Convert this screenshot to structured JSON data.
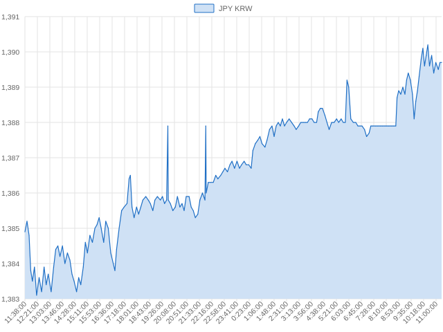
{
  "chart_data": {
    "type": "area",
    "series": [
      {
        "name": "JPY KRW",
        "color": "#1f6fc5",
        "fill": "#cfe1f5",
        "points": [
          [
            0,
            1384.9
          ],
          [
            0.5,
            1385.2
          ],
          [
            1,
            1384.8
          ],
          [
            1.4,
            1383.8
          ],
          [
            1.8,
            1383.5
          ],
          [
            2.3,
            1383.9
          ],
          [
            2.8,
            1383.1
          ],
          [
            3.4,
            1383.6
          ],
          [
            4,
            1383.2
          ],
          [
            4.6,
            1383.9
          ],
          [
            5.1,
            1383.4
          ],
          [
            5.6,
            1383.7
          ],
          [
            6.3,
            1383.2
          ],
          [
            6.9,
            1383.9
          ],
          [
            7.4,
            1384.4
          ],
          [
            7.9,
            1384.5
          ],
          [
            8.4,
            1384.2
          ],
          [
            9,
            1384.5
          ],
          [
            9.6,
            1384.0
          ],
          [
            10.2,
            1384.3
          ],
          [
            10.8,
            1384.1
          ],
          [
            11.3,
            1383.7
          ],
          [
            11.8,
            1383.5
          ],
          [
            12.4,
            1383.2
          ],
          [
            12.9,
            1383.6
          ],
          [
            13.4,
            1383.4
          ],
          [
            14,
            1383.9
          ],
          [
            14.5,
            1384.6
          ],
          [
            15,
            1384.3
          ],
          [
            15.6,
            1384.8
          ],
          [
            16.2,
            1384.6
          ],
          [
            16.8,
            1385.0
          ],
          [
            17.3,
            1385.1
          ],
          [
            17.8,
            1385.3
          ],
          [
            18.3,
            1385.0
          ],
          [
            18.9,
            1384.6
          ],
          [
            19.4,
            1385.2
          ],
          [
            20,
            1385.0
          ],
          [
            20.6,
            1384.3
          ],
          [
            21.2,
            1384.0
          ],
          [
            21.6,
            1383.8
          ],
          [
            22,
            1384.4
          ],
          [
            22.6,
            1385.0
          ],
          [
            23.2,
            1385.5
          ],
          [
            23.8,
            1385.6
          ],
          [
            24.5,
            1385.7
          ],
          [
            25,
            1386.4
          ],
          [
            25.3,
            1386.5
          ],
          [
            25.7,
            1385.6
          ],
          [
            26.2,
            1385.3
          ],
          [
            26.8,
            1385.6
          ],
          [
            27.3,
            1385.4
          ],
          [
            27.8,
            1385.6
          ],
          [
            28.3,
            1385.8
          ],
          [
            29,
            1385.9
          ],
          [
            29.6,
            1385.8
          ],
          [
            30.1,
            1385.7
          ],
          [
            30.7,
            1385.5
          ],
          [
            31.2,
            1385.8
          ],
          [
            31.8,
            1385.9
          ],
          [
            32.5,
            1385.8
          ],
          [
            33,
            1385.9
          ],
          [
            33.5,
            1385.7
          ],
          [
            34,
            1385.8
          ],
          [
            34.3,
            1387.9
          ],
          [
            34.4,
            1385.8
          ],
          [
            34.9,
            1385.7
          ],
          [
            35.5,
            1385.5
          ],
          [
            36.1,
            1385.6
          ],
          [
            36.6,
            1385.9
          ],
          [
            37.2,
            1385.6
          ],
          [
            37.7,
            1385.7
          ],
          [
            38.2,
            1385.5
          ],
          [
            38.7,
            1385.9
          ],
          [
            39.4,
            1385.9
          ],
          [
            39.9,
            1385.6
          ],
          [
            40.4,
            1385.5
          ],
          [
            40.9,
            1385.3
          ],
          [
            41.5,
            1385.4
          ],
          [
            42,
            1385.8
          ],
          [
            42.6,
            1386.0
          ],
          [
            43.2,
            1385.8
          ],
          [
            43.4,
            1387.9
          ],
          [
            43.5,
            1386.0
          ],
          [
            44,
            1386.3
          ],
          [
            44.6,
            1386.3
          ],
          [
            45.2,
            1386.3
          ],
          [
            45.8,
            1386.5
          ],
          [
            46.3,
            1386.4
          ],
          [
            47,
            1386.5
          ],
          [
            47.5,
            1386.6
          ],
          [
            48,
            1386.7
          ],
          [
            48.6,
            1386.6
          ],
          [
            49.2,
            1386.8
          ],
          [
            49.7,
            1386.9
          ],
          [
            50.3,
            1386.7
          ],
          [
            50.9,
            1386.9
          ],
          [
            51.5,
            1386.7
          ],
          [
            52,
            1386.8
          ],
          [
            52.6,
            1386.9
          ],
          [
            53.1,
            1386.8
          ],
          [
            53.7,
            1386.8
          ],
          [
            54.3,
            1386.7
          ],
          [
            54.7,
            1387.2
          ],
          [
            55.3,
            1387.4
          ],
          [
            55.9,
            1387.5
          ],
          [
            56.4,
            1387.6
          ],
          [
            56.9,
            1387.4
          ],
          [
            57.6,
            1387.3
          ],
          [
            58.1,
            1387.5
          ],
          [
            58.7,
            1387.8
          ],
          [
            59.3,
            1387.9
          ],
          [
            59.8,
            1387.6
          ],
          [
            60.3,
            1387.9
          ],
          [
            60.8,
            1388.0
          ],
          [
            61.3,
            1387.9
          ],
          [
            61.8,
            1388.1
          ],
          [
            62.3,
            1387.9
          ],
          [
            62.8,
            1388.0
          ],
          [
            63.4,
            1388.1
          ],
          [
            64,
            1388.0
          ],
          [
            64.6,
            1387.9
          ],
          [
            65.1,
            1387.8
          ],
          [
            65.7,
            1387.9
          ],
          [
            66.2,
            1388.0
          ],
          [
            66.8,
            1388.0
          ],
          [
            67.3,
            1388.0
          ],
          [
            67.8,
            1388.0
          ],
          [
            68.3,
            1388.1
          ],
          [
            68.9,
            1388.1
          ],
          [
            69.4,
            1388.0
          ],
          [
            70,
            1388.0
          ],
          [
            70.4,
            1388.3
          ],
          [
            70.9,
            1388.4
          ],
          [
            71.4,
            1388.4
          ],
          [
            72,
            1388.2
          ],
          [
            72.5,
            1388.0
          ],
          [
            73,
            1387.8
          ],
          [
            73.6,
            1388.0
          ],
          [
            74.2,
            1388.0
          ],
          [
            74.8,
            1388.1
          ],
          [
            75.3,
            1388.0
          ],
          [
            75.9,
            1388.1
          ],
          [
            76.4,
            1388.0
          ],
          [
            76.9,
            1388.0
          ],
          [
            77.3,
            1389.2
          ],
          [
            77.7,
            1389.0
          ],
          [
            78.2,
            1388.1
          ],
          [
            78.8,
            1388.0
          ],
          [
            79.4,
            1388.0
          ],
          [
            79.9,
            1387.9
          ],
          [
            80.4,
            1387.9
          ],
          [
            80.9,
            1387.9
          ],
          [
            81.5,
            1387.8
          ],
          [
            82,
            1387.6
          ],
          [
            82.6,
            1387.7
          ],
          [
            83,
            1387.9
          ],
          [
            83.5,
            1387.9
          ],
          [
            84.1,
            1387.9
          ],
          [
            84.7,
            1387.9
          ],
          [
            85.3,
            1387.9
          ],
          [
            85.8,
            1387.9
          ],
          [
            86.4,
            1387.9
          ],
          [
            86.8,
            1387.9
          ],
          [
            87.3,
            1387.9
          ],
          [
            87.9,
            1387.9
          ],
          [
            88.4,
            1387.9
          ],
          [
            89,
            1387.9
          ],
          [
            89.3,
            1388.7
          ],
          [
            89.7,
            1388.9
          ],
          [
            90.2,
            1388.8
          ],
          [
            90.7,
            1389.0
          ],
          [
            91.2,
            1388.8
          ],
          [
            91.6,
            1389.2
          ],
          [
            92,
            1389.4
          ],
          [
            92.5,
            1389.2
          ],
          [
            93,
            1388.8
          ],
          [
            93.4,
            1388.1
          ],
          [
            93.8,
            1388.6
          ],
          [
            94.2,
            1388.9
          ],
          [
            94.6,
            1389.3
          ],
          [
            95.1,
            1389.8
          ],
          [
            95.5,
            1390.1
          ],
          [
            95.9,
            1389.6
          ],
          [
            96.3,
            1389.9
          ],
          [
            96.7,
            1390.2
          ],
          [
            97.1,
            1389.6
          ],
          [
            97.6,
            1389.9
          ],
          [
            98.1,
            1389.4
          ],
          [
            98.6,
            1389.7
          ],
          [
            99.2,
            1389.5
          ],
          [
            99.6,
            1389.7
          ],
          [
            100,
            1389.7
          ]
        ]
      }
    ],
    "x_tick_labels": [
      "11:38:00",
      "12:21:00",
      "13:03:00",
      "13:46:00",
      "14:28:00",
      "15:11:00",
      "15:53:00",
      "16:36:00",
      "17:18:00",
      "18:01:00",
      "18:43:00",
      "19:26:00",
      "20:08:00",
      "20:51:00",
      "21:33:00",
      "22:16:00",
      "22:58:00",
      "23:41:00",
      "0:23:00",
      "1:06:00",
      "1:48:00",
      "2:31:00",
      "3:13:00",
      "3:56:00",
      "4:38:00",
      "5:21:00",
      "6:03:00",
      "6:45:00",
      "7:28:00",
      "8:10:00",
      "8:53:00",
      "9:35:00",
      "10:18:00",
      "11:00:00"
    ],
    "x_range": [
      0,
      100
    ],
    "y_ticks": [
      "1,383",
      "1,384",
      "1,385",
      "1,386",
      "1,387",
      "1,388",
      "1,389",
      "1,390",
      "1,391"
    ],
    "ylim": [
      1383,
      1391
    ],
    "grid": true,
    "legend": {
      "position": "top-center",
      "label": "JPY KRW"
    }
  }
}
